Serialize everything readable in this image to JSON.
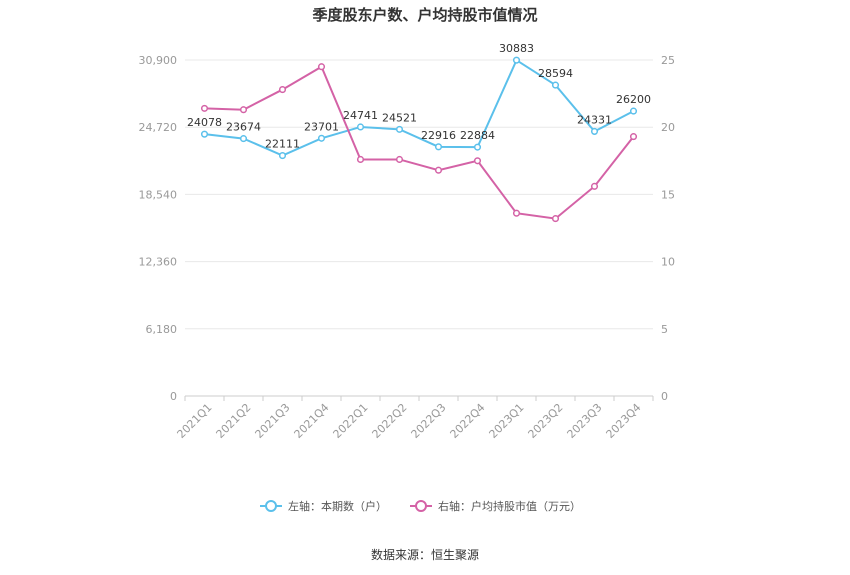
{
  "chart_data": {
    "type": "line",
    "title": "季度股东户数、户均持股市值情况",
    "categories": [
      "2021Q1",
      "2021Q2",
      "2021Q3",
      "2021Q4",
      "2022Q1",
      "2022Q2",
      "2022Q3",
      "2022Q4",
      "2023Q1",
      "2023Q2",
      "2023Q3",
      "2023Q4"
    ],
    "left_axis": {
      "min": 0,
      "max": 30900,
      "ticks": [
        0,
        6180,
        12360,
        18540,
        24720,
        30900
      ],
      "tick_labels": [
        "0",
        "6,180",
        "12,360",
        "18,540",
        "24,720",
        "30,900"
      ]
    },
    "right_axis": {
      "min": 0,
      "max": 25,
      "ticks": [
        0,
        5,
        10,
        15,
        20,
        25
      ],
      "tick_labels": [
        "0",
        "5",
        "10",
        "15",
        "20",
        "25"
      ]
    },
    "grid": true,
    "legend_position": "bottom",
    "series": [
      {
        "name": "左轴：本期数（户）",
        "axis": "left",
        "color": "#5bc0eb",
        "values": [
          24078,
          23674,
          22111,
          23701,
          24741,
          24521,
          22916,
          22884,
          30883,
          28594,
          24331,
          26200
        ],
        "labels": [
          "24078",
          "23674",
          "22111",
          "23701",
          "24741",
          "24521",
          "22916",
          "22884",
          "30883",
          "28594",
          "24331",
          "26200"
        ]
      },
      {
        "name": "右轴：户均持股市值（万元）",
        "axis": "right",
        "color": "#d462a6",
        "values": [
          21.4,
          21.3,
          22.8,
          24.5,
          17.6,
          17.6,
          16.8,
          17.5,
          13.6,
          13.2,
          15.6,
          19.3
        ]
      }
    ],
    "source": "数据来源：恒生聚源"
  }
}
